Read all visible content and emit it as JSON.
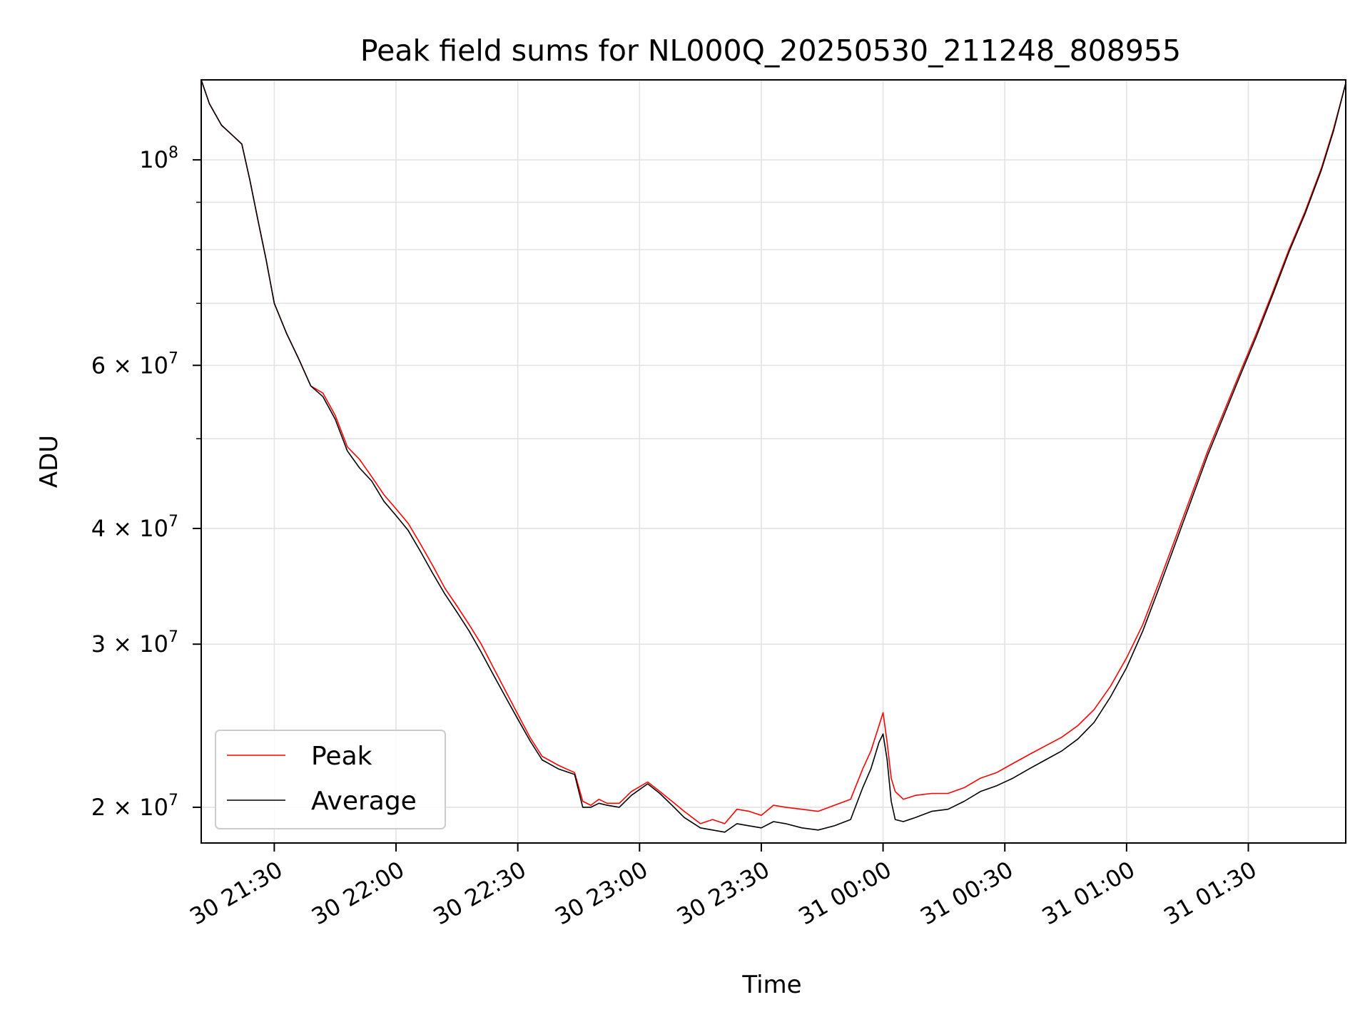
{
  "chart_data": {
    "type": "line",
    "title": "Peak field sums for NL000Q_20250530_211248_808955",
    "xlabel": "Time",
    "ylabel": "ADU",
    "yscale": "log",
    "xlim": [
      "2025-05-30 21:12",
      "2025-05-31 01:54"
    ],
    "ylim": [
      18300000,
      122000000
    ],
    "grid": true,
    "legend_position": "lower-left",
    "x_ticks": [
      {
        "value": "2025-05-30 21:30",
        "label": "30 21:30"
      },
      {
        "value": "2025-05-30 22:00",
        "label": "30 22:00"
      },
      {
        "value": "2025-05-30 22:30",
        "label": "30 22:30"
      },
      {
        "value": "2025-05-30 23:00",
        "label": "30 23:00"
      },
      {
        "value": "2025-05-30 23:30",
        "label": "30 23:30"
      },
      {
        "value": "2025-05-31 00:00",
        "label": "31 00:00"
      },
      {
        "value": "2025-05-31 00:30",
        "label": "31 00:30"
      },
      {
        "value": "2025-05-31 01:00",
        "label": "31 01:00"
      },
      {
        "value": "2025-05-31 01:30",
        "label": "31 01:30"
      }
    ],
    "y_ticks": [
      {
        "value": 100000000,
        "base": "10",
        "exp": "8"
      },
      {
        "value": 60000000,
        "base": "6 × 10",
        "exp": "7"
      },
      {
        "value": 40000000,
        "base": "4 × 10",
        "exp": "7"
      },
      {
        "value": 30000000,
        "base": "3 × 10",
        "exp": "7"
      },
      {
        "value": 20000000,
        "base": "2 × 10",
        "exp": "7"
      }
    ],
    "y_minor_ticks": [
      90000000,
      80000000,
      70000000,
      50000000
    ],
    "x": [
      "2025-05-30 21:12",
      "2025-05-30 21:14",
      "2025-05-30 21:17",
      "2025-05-30 21:20",
      "2025-05-30 21:22",
      "2025-05-30 21:24",
      "2025-05-30 21:26",
      "2025-05-30 21:28",
      "2025-05-30 21:30",
      "2025-05-30 21:33",
      "2025-05-30 21:36",
      "2025-05-30 21:39",
      "2025-05-30 21:42",
      "2025-05-30 21:45",
      "2025-05-30 21:48",
      "2025-05-30 21:51",
      "2025-05-30 21:54",
      "2025-05-30 21:57",
      "2025-05-30 22:00",
      "2025-05-30 22:03",
      "2025-05-30 22:06",
      "2025-05-30 22:09",
      "2025-05-30 22:12",
      "2025-05-30 22:15",
      "2025-05-30 22:18",
      "2025-05-30 22:21",
      "2025-05-30 22:24",
      "2025-05-30 22:27",
      "2025-05-30 22:30",
      "2025-05-30 22:33",
      "2025-05-30 22:36",
      "2025-05-30 22:40",
      "2025-05-30 22:44",
      "2025-05-30 22:46",
      "2025-05-30 22:48",
      "2025-05-30 22:50",
      "2025-05-30 22:52",
      "2025-05-30 22:55",
      "2025-05-30 22:58",
      "2025-05-30 23:02",
      "2025-05-30 23:05",
      "2025-05-30 23:08",
      "2025-05-30 23:11",
      "2025-05-30 23:15",
      "2025-05-30 23:18",
      "2025-05-30 23:21",
      "2025-05-30 23:24",
      "2025-05-30 23:27",
      "2025-05-30 23:30",
      "2025-05-30 23:33",
      "2025-05-30 23:36",
      "2025-05-30 23:40",
      "2025-05-30 23:44",
      "2025-05-30 23:48",
      "2025-05-30 23:52",
      "2025-05-30 23:55",
      "2025-05-30 23:57",
      "2025-05-30 23:59",
      "2025-05-31 00:00",
      "2025-05-31 00:01",
      "2025-05-31 00:02",
      "2025-05-31 00:03",
      "2025-05-31 00:05",
      "2025-05-31 00:08",
      "2025-05-31 00:12",
      "2025-05-31 00:16",
      "2025-05-31 00:20",
      "2025-05-31 00:24",
      "2025-05-31 00:28",
      "2025-05-31 00:32",
      "2025-05-31 00:36",
      "2025-05-31 00:40",
      "2025-05-31 00:44",
      "2025-05-31 00:48",
      "2025-05-31 00:52",
      "2025-05-31 00:56",
      "2025-05-31 01:00",
      "2025-05-31 01:04",
      "2025-05-31 01:08",
      "2025-05-31 01:12",
      "2025-05-31 01:16",
      "2025-05-31 01:20",
      "2025-05-31 01:24",
      "2025-05-31 01:28",
      "2025-05-31 01:32",
      "2025-05-31 01:36",
      "2025-05-31 01:40",
      "2025-05-31 01:44",
      "2025-05-31 01:48",
      "2025-05-31 01:51",
      "2025-05-31 01:54"
    ],
    "series": [
      {
        "name": "Peak",
        "color": "#ff0000",
        "values": [
          122000000,
          115000000,
          109000000,
          106000000,
          104000000,
          95000000,
          86000000,
          78000000,
          70000000,
          65000000,
          61000000,
          57000000,
          56000000,
          53000000,
          49000000,
          47500000,
          45500000,
          43500000,
          42000000,
          40500000,
          38500000,
          36500000,
          34500000,
          33000000,
          31500000,
          30000000,
          28300000,
          26700000,
          25200000,
          23800000,
          22700000,
          22200000,
          21800000,
          20300000,
          20100000,
          20400000,
          20200000,
          20200000,
          20800000,
          21300000,
          20800000,
          20300000,
          19800000,
          19200000,
          19400000,
          19200000,
          19900000,
          19800000,
          19600000,
          20100000,
          20000000,
          19900000,
          19800000,
          20100000,
          20400000,
          22000000,
          23000000,
          24500000,
          25300000,
          23500000,
          21500000,
          20800000,
          20400000,
          20600000,
          20700000,
          20700000,
          21000000,
          21500000,
          21800000,
          22300000,
          22800000,
          23300000,
          23800000,
          24500000,
          25500000,
          27000000,
          29000000,
          31500000,
          35000000,
          39000000,
          43500000,
          48500000,
          53500000,
          59000000,
          65000000,
          72000000,
          80000000,
          88000000,
          98000000,
          108000000,
          121000000
        ]
      },
      {
        "name": "Average",
        "color": "#000000",
        "values": [
          122000000,
          115000000,
          109000000,
          106000000,
          104000000,
          95000000,
          86000000,
          78000000,
          70000000,
          65000000,
          61000000,
          57000000,
          55500000,
          52500000,
          48500000,
          46500000,
          45000000,
          42800000,
          41300000,
          39800000,
          37800000,
          35800000,
          34000000,
          32500000,
          31000000,
          29400000,
          27800000,
          26300000,
          24900000,
          23600000,
          22500000,
          22000000,
          21700000,
          20000000,
          20000000,
          20200000,
          20100000,
          20000000,
          20600000,
          21200000,
          20700000,
          20100000,
          19500000,
          19000000,
          18900000,
          18800000,
          19200000,
          19100000,
          19000000,
          19300000,
          19200000,
          19000000,
          18900000,
          19100000,
          19400000,
          21000000,
          22000000,
          23500000,
          24000000,
          22500000,
          20300000,
          19400000,
          19300000,
          19500000,
          19800000,
          19900000,
          20300000,
          20800000,
          21100000,
          21500000,
          22000000,
          22500000,
          23000000,
          23700000,
          24700000,
          26300000,
          28300000,
          31000000,
          34500000,
          38500000,
          43000000,
          48000000,
          53000000,
          58500000,
          64500000,
          71500000,
          79500000,
          87500000,
          97500000,
          107500000,
          121000000
        ]
      }
    ]
  }
}
